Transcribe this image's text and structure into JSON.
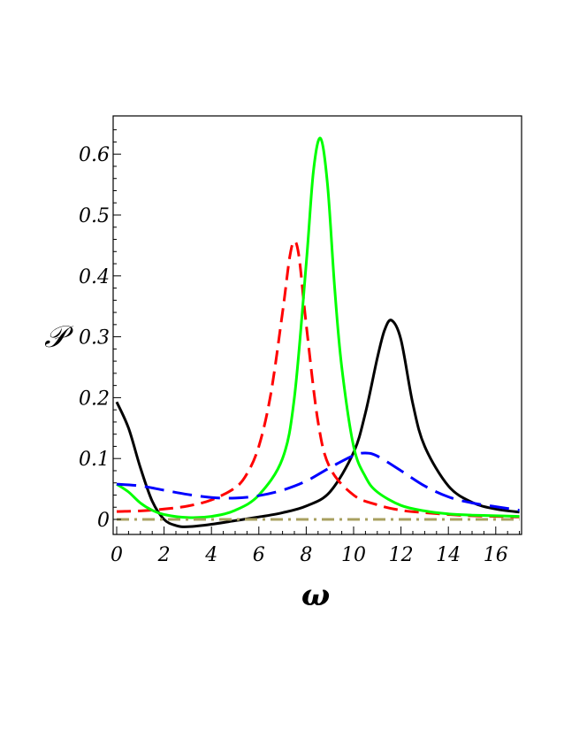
{
  "chart_data": {
    "type": "line",
    "title": "",
    "xlabel": "ω",
    "ylabel": "𝒫",
    "xlim": [
      -0.2,
      17.2
    ],
    "ylim": [
      -0.02,
      0.66
    ],
    "x_ticks": [
      0,
      2,
      4,
      6,
      8,
      10,
      12,
      14,
      16
    ],
    "x_tick_labels": [
      "0",
      "2",
      "4",
      "6",
      "8",
      "10",
      "12",
      "14",
      "16"
    ],
    "y_ticks": [
      0,
      0.1,
      0.2,
      0.3,
      0.4,
      0.5,
      0.6
    ],
    "y_tick_labels": [
      "0",
      "0.1",
      "0.2",
      "0.3",
      "0.4",
      "0.5",
      "0.6"
    ],
    "grid": false,
    "legend": "none",
    "series": [
      {
        "color": "#000000",
        "dash": "solid",
        "x": [
          0,
          0.5,
          1,
          1.5,
          2,
          2.5,
          3,
          4,
          5,
          6,
          7,
          8,
          9,
          10,
          10.5,
          11,
          11.3,
          11.6,
          12,
          12.5,
          13,
          14,
          15,
          16,
          17
        ],
        "y": [
          0.193,
          0.15,
          0.085,
          0.03,
          0.0,
          -0.01,
          -0.012,
          -0.008,
          -0.002,
          0.004,
          0.011,
          0.022,
          0.045,
          0.11,
          0.175,
          0.265,
          0.31,
          0.327,
          0.295,
          0.19,
          0.12,
          0.055,
          0.028,
          0.017,
          0.012
        ]
      },
      {
        "color": "#ff0000",
        "dash": "dashed",
        "x": [
          0,
          1,
          2,
          3,
          4,
          5,
          5.5,
          6,
          6.5,
          7,
          7.3,
          7.5,
          7.7,
          8,
          8.5,
          9,
          10,
          11,
          12,
          13,
          14,
          15,
          16,
          17
        ],
        "y": [
          0.013,
          0.014,
          0.017,
          0.022,
          0.032,
          0.052,
          0.075,
          0.12,
          0.205,
          0.34,
          0.43,
          0.457,
          0.43,
          0.32,
          0.16,
          0.085,
          0.04,
          0.024,
          0.015,
          0.011,
          0.008,
          0.006,
          0.005,
          0.004
        ]
      },
      {
        "color": "#00ff00",
        "dash": "solid",
        "x": [
          0,
          0.5,
          1,
          1.5,
          2,
          3,
          4,
          5,
          6,
          7,
          7.5,
          8,
          8.3,
          8.6,
          8.9,
          9.2,
          9.5,
          10,
          10.5,
          11,
          12,
          13,
          14,
          15,
          16,
          17
        ],
        "y": [
          0.058,
          0.045,
          0.027,
          0.015,
          0.008,
          0.003,
          0.005,
          0.015,
          0.04,
          0.1,
          0.2,
          0.42,
          0.57,
          0.626,
          0.55,
          0.38,
          0.25,
          0.12,
          0.07,
          0.045,
          0.023,
          0.014,
          0.009,
          0.007,
          0.006,
          0.005
        ]
      },
      {
        "color": "#0000ff",
        "dash": "longdash",
        "x": [
          0,
          1,
          2,
          3,
          4,
          5,
          6,
          7,
          8,
          9,
          10,
          10.5,
          11,
          12,
          13,
          14,
          15,
          16,
          17
        ],
        "y": [
          0.058,
          0.055,
          0.048,
          0.041,
          0.036,
          0.035,
          0.039,
          0.048,
          0.063,
          0.085,
          0.105,
          0.109,
          0.104,
          0.08,
          0.055,
          0.037,
          0.027,
          0.021,
          0.015
        ]
      },
      {
        "color": "#a8a060",
        "dash": "dashdot",
        "x": [
          0,
          17
        ],
        "y": [
          0,
          0
        ]
      }
    ]
  }
}
